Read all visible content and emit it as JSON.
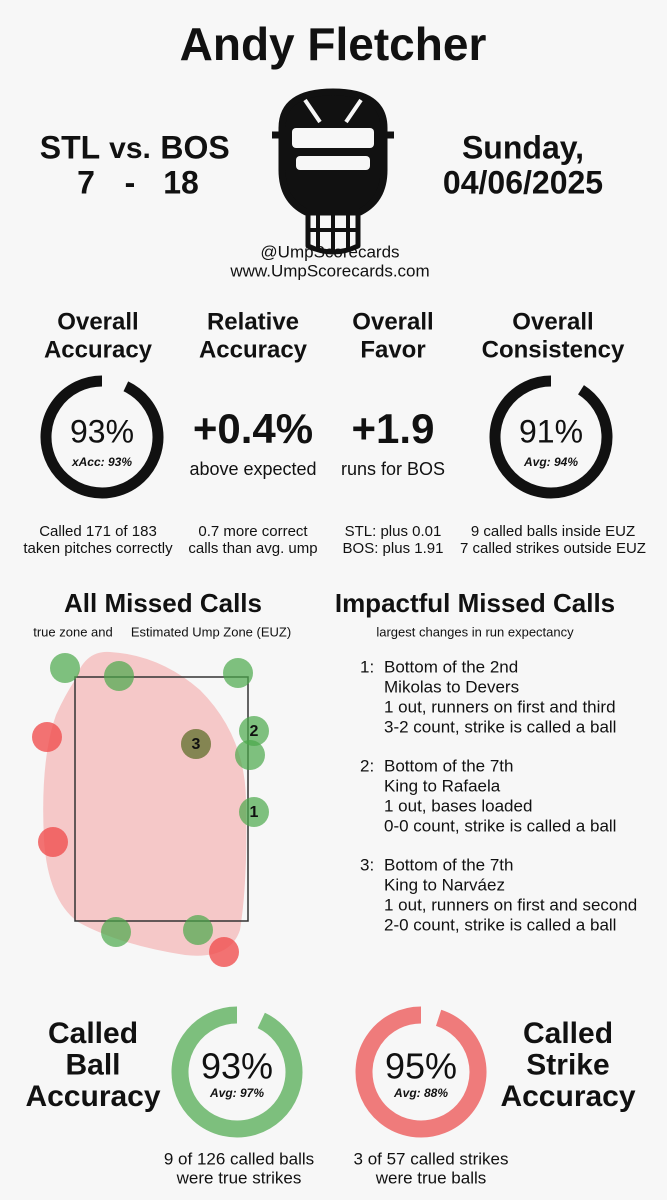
{
  "header": {
    "name": "Andy Fletcher",
    "away_team": "STL",
    "vs": "vs.",
    "home_team": "BOS",
    "away_score": 7,
    "dash": "-",
    "home_score": 18,
    "day": "Sunday,",
    "date": "04/06/2025",
    "handle": "@UmpScorecards",
    "website": "www.UmpScorecards.com"
  },
  "metrics": [
    {
      "title": [
        "Overall",
        "Accuracy"
      ],
      "ring": {
        "value": 93,
        "label": "93%"
      },
      "sub": "xAcc: 93%",
      "notes": [
        "Called 171 of 183",
        "taken pitches correctly"
      ]
    },
    {
      "title": [
        "Relative",
        "Accuracy"
      ],
      "big": "+0.4%",
      "sub": "above expected",
      "notes": [
        "0.7 more correct",
        "calls than avg. ump"
      ]
    },
    {
      "title": [
        "Overall",
        "Favor"
      ],
      "big": "+1.9",
      "sub": "runs for BOS",
      "notes": [
        "STL: plus 0.01",
        "BOS: plus 1.91"
      ]
    },
    {
      "title": [
        "Overall",
        "Consistency"
      ],
      "ring": {
        "value": 91,
        "label": "91%"
      },
      "sub": "Avg: 94%",
      "notes": [
        "9 called balls inside EUZ",
        "7 called strikes outside EUZ"
      ]
    }
  ],
  "missed_calls": {
    "title": "All Missed Calls",
    "subtitle": "true zone and",
    "subtitle_highlight": "Estimated Ump Zone (EUZ)",
    "markers": [
      1,
      2,
      3
    ]
  },
  "impactful": {
    "title": "Impactful Missed Calls",
    "subtitle": "largest changes in run expectancy",
    "items": [
      {
        "num": "1:",
        "lines": [
          "Bottom of the 2nd",
          "Mikolas to Devers",
          "1 out, runners on first and third",
          "3-2 count, strike is called a ball"
        ]
      },
      {
        "num": "2:",
        "lines": [
          "Bottom of the 7th",
          "King to Rafaela",
          "1 out, bases loaded",
          "0-0 count, strike is called a ball"
        ]
      },
      {
        "num": "3:",
        "lines": [
          "Bottom of the 7th",
          "King to Narváez",
          "1 out, runners on first and second",
          "2-0 count, strike is called a ball"
        ]
      }
    ]
  },
  "bottom": [
    {
      "title": [
        "Called",
        "Ball",
        "Accuracy"
      ],
      "ring": {
        "value": 93,
        "label": "93%"
      },
      "sub": "Avg: 97%",
      "notes": [
        "9 of 126 called balls",
        "were true strikes"
      ]
    },
    {
      "title": [
        "Called",
        "Strike",
        "Accuracy"
      ],
      "ring": {
        "value": 95,
        "label": "95%"
      },
      "sub": "Avg: 88%",
      "notes": [
        "3 of 57 called strikes",
        "were true balls"
      ]
    }
  ]
}
